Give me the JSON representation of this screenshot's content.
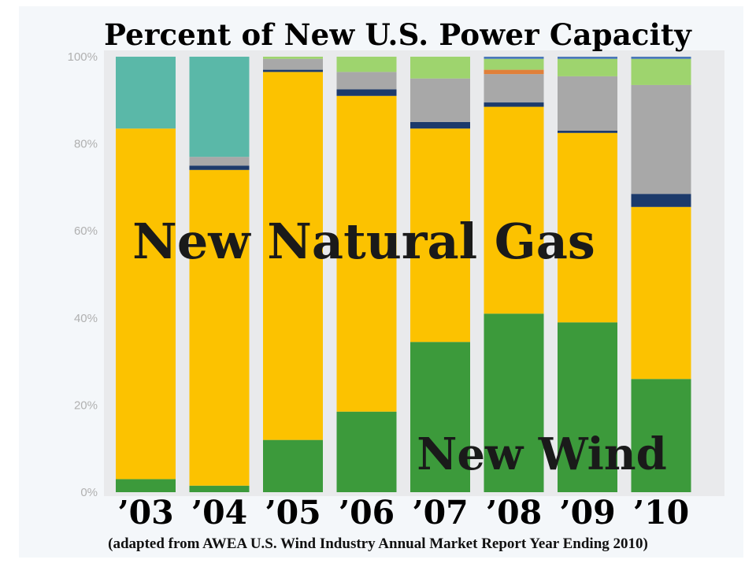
{
  "chart_data": {
    "type": "bar",
    "stacked": true,
    "title": "Percent of New U.S. Power Capacity",
    "categories": [
      "’03",
      "’04",
      "’05",
      "’06",
      "’07",
      "’08",
      "’09",
      "’10"
    ],
    "ylim": [
      0,
      100
    ],
    "yticks": [
      "0%",
      "20%",
      "40%",
      "60%",
      "80%",
      "100%"
    ],
    "grid": false,
    "annotations": [
      "New Natural Gas",
      "New Wind"
    ],
    "source_note": "(adapted from AWEA U.S. Wind Industry Annual Market Report Year Ending 2010)",
    "series": [
      {
        "color": "#3c9a3b",
        "values": [
          3,
          1.5,
          12,
          18.5,
          34.5,
          41,
          39,
          26
        ]
      },
      {
        "color": "#fcc200",
        "values": [
          80.5,
          72.5,
          84.5,
          72.5,
          49,
          47.5,
          43.5,
          39.5
        ]
      },
      {
        "color": "#1c3a6b",
        "values": [
          0,
          1,
          0.5,
          1.5,
          1.5,
          1,
          0.5,
          3
        ]
      },
      {
        "color": "#a8a8a8",
        "values": [
          0,
          2,
          2.5,
          4,
          10,
          6.5,
          12.5,
          25
        ]
      },
      {
        "color": "#e0803a",
        "values": [
          0,
          0,
          0,
          0,
          0,
          1,
          0,
          0
        ]
      },
      {
        "color": "#9ed46e",
        "values": [
          0,
          0,
          0.5,
          3.5,
          5,
          2.5,
          4,
          6
        ]
      },
      {
        "color": "#5ab8a8",
        "values": [
          16.5,
          23,
          0,
          0,
          0,
          0,
          0,
          0
        ]
      },
      {
        "color": "#4a78b8",
        "values": [
          0,
          0,
          0,
          0,
          0,
          0.5,
          0.5,
          0.5
        ]
      }
    ]
  }
}
